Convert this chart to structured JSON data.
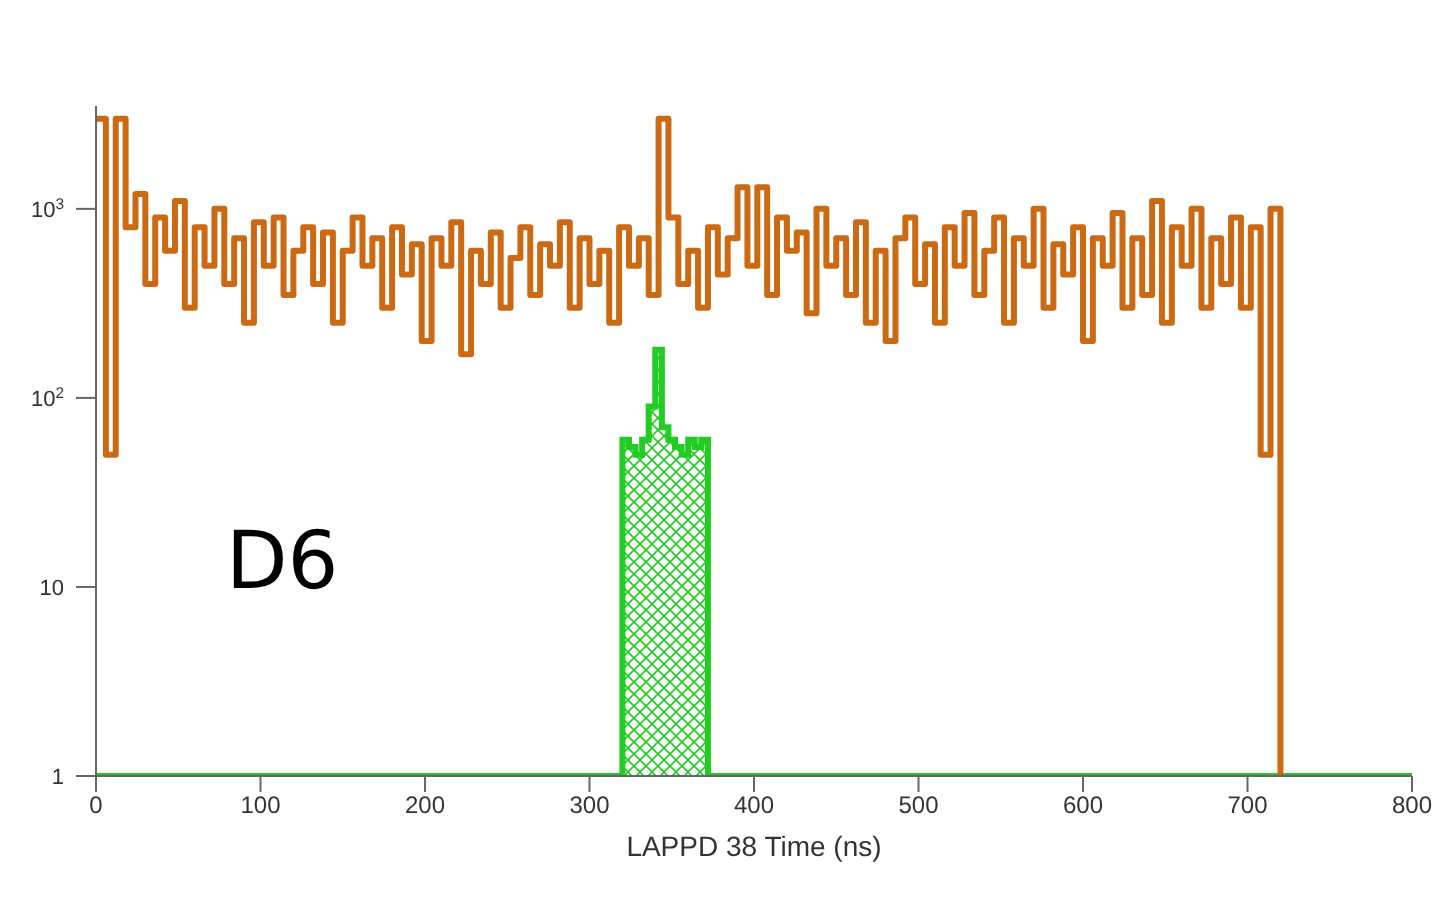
{
  "chart_data": {
    "type": "step",
    "xlabel": "LAPPD 38 Time (ns)",
    "annotations": [
      "D6"
    ],
    "log": "y",
    "marker": "none",
    "xlim": [
      0,
      800
    ],
    "xticks": [
      0,
      100,
      200,
      300,
      400,
      500,
      600,
      700,
      800
    ],
    "ylim": [
      1,
      3500
    ],
    "yticks": [
      1,
      10,
      {
        "value": 100,
        "label": "10$^{2}$"
      },
      {
        "value": 1000,
        "label": "10$^{3}$"
      }
    ],
    "series": [
      {
        "color": "#cc6a14",
        "x": [
          0,
          6,
          12,
          18,
          24,
          30,
          36,
          42,
          48,
          54,
          60,
          66,
          72,
          78,
          84,
          90,
          96,
          102,
          108,
          114,
          120,
          126,
          132,
          138,
          144,
          150,
          156,
          162,
          168,
          174,
          180,
          186,
          192,
          198,
          204,
          210,
          216,
          222,
          228,
          234,
          240,
          246,
          252,
          258,
          264,
          270,
          276,
          282,
          288,
          294,
          300,
          306,
          312,
          318,
          324,
          330,
          336,
          342,
          348,
          354,
          360,
          366,
          372,
          378,
          384,
          390,
          396,
          402,
          408,
          414,
          420,
          426,
          432,
          438,
          444,
          450,
          456,
          462,
          468,
          474,
          480,
          486,
          492,
          498,
          504,
          510,
          516,
          522,
          528,
          534,
          540,
          546,
          552,
          558,
          564,
          570,
          576,
          582,
          588,
          594,
          600,
          606,
          612,
          618,
          624,
          630,
          636,
          642,
          648,
          654,
          660,
          666,
          672,
          678,
          684,
          690,
          696,
          702,
          708,
          714,
          720
        ],
        "values": [
          3000,
          50,
          3000,
          800,
          1200,
          400,
          900,
          600,
          1100,
          300,
          800,
          500,
          1000,
          400,
          700,
          250,
          850,
          500,
          900,
          350,
          600,
          800,
          400,
          750,
          250,
          600,
          900,
          500,
          700,
          300,
          800,
          450,
          650,
          200,
          700,
          500,
          850,
          170,
          600,
          400,
          750,
          300,
          550,
          800,
          350,
          650,
          500,
          850,
          300,
          700,
          400,
          600,
          250,
          800,
          500,
          700,
          350,
          3000,
          900,
          400,
          600,
          300,
          800,
          450,
          700,
          1300,
          500,
          1300,
          350,
          900,
          600,
          750,
          280,
          1000,
          500,
          700,
          350,
          850,
          250,
          600,
          200,
          700,
          900,
          400,
          650,
          250,
          800,
          500,
          950,
          350,
          600,
          900,
          250,
          700,
          500,
          1000,
          300,
          650,
          450,
          800,
          200,
          700,
          500,
          950,
          300,
          700,
          350,
          1100,
          250,
          800,
          500,
          1000,
          300,
          700,
          400,
          900,
          300,
          800,
          50,
          1000,
          1
        ]
      },
      {
        "type": "area",
        "color": "#22cc22",
        "x": [
          0,
          320,
          324,
          328,
          332,
          336,
          340,
          344,
          348,
          352,
          356,
          360,
          364,
          368,
          372,
          800
        ],
        "values": [
          1,
          60,
          55,
          50,
          60,
          90,
          180,
          70,
          60,
          55,
          50,
          60,
          55,
          60,
          1,
          1
        ]
      }
    ]
  }
}
